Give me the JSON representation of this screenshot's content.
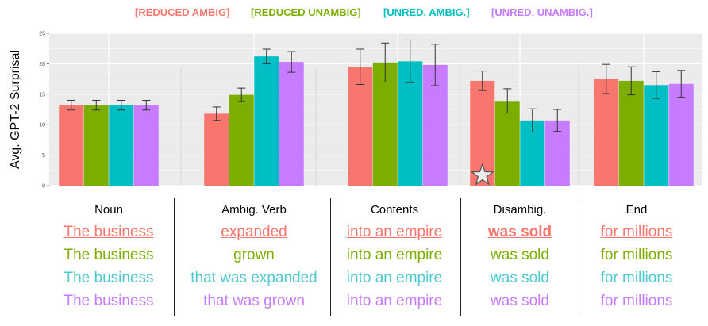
{
  "chart_data": {
    "type": "bar",
    "ylabel": "Avg. GPT-2 Surprisal",
    "ylim": [
      0,
      25
    ],
    "yticks": [
      0,
      5,
      10,
      15,
      20,
      25
    ],
    "grid": true,
    "legend_position": "top",
    "categories": [
      "Noun",
      "Ambig. Verb",
      "Contents",
      "Disambig.",
      "End"
    ],
    "series": [
      {
        "name": "[REDUCED AMBIG]",
        "color": "#f8766d",
        "values": [
          13.2,
          11.8,
          19.5,
          17.2,
          17.5
        ],
        "errors": [
          0.8,
          1.1,
          2.9,
          1.6,
          2.4
        ]
      },
      {
        "name": "[REDUCED UNAMBIG]",
        "color": "#7cae00",
        "values": [
          13.2,
          14.9,
          20.2,
          13.9,
          17.2
        ],
        "errors": [
          0.8,
          1.1,
          3.2,
          2.0,
          2.3
        ]
      },
      {
        "name": "[UNRED. AMBIG.]",
        "color": "#00bfc4",
        "values": [
          13.2,
          21.2,
          20.4,
          10.7,
          16.5
        ],
        "errors": [
          0.8,
          1.2,
          3.5,
          1.9,
          2.2
        ]
      },
      {
        "name": "[UNRED. UNAMBIG.]",
        "color": "#c77cff",
        "values": [
          13.2,
          20.3,
          19.8,
          10.7,
          16.7
        ],
        "errors": [
          0.8,
          1.7,
          3.4,
          1.8,
          2.2
        ]
      }
    ],
    "annotations": [
      {
        "type": "star",
        "category": "Disambig.",
        "series": "[REDUCED AMBIG]"
      }
    ]
  },
  "examples": {
    "columns": [
      {
        "header": "Noun",
        "rows": [
          "The business",
          "The business",
          "The business",
          "The business"
        ]
      },
      {
        "header": "Ambig. Verb",
        "rows": [
          "expanded",
          "grown",
          "that was expanded",
          "that was grown"
        ]
      },
      {
        "header": "Contents",
        "rows": [
          "into an empire",
          "into an empire",
          "into an empire",
          "into an empire"
        ]
      },
      {
        "header": "Disambig.",
        "rows": [
          "was sold",
          "was sold",
          "was sold",
          "was sold"
        ]
      },
      {
        "header": "End",
        "rows": [
          "for millions",
          "for millions",
          "for millions",
          "for millions"
        ]
      }
    ],
    "row_colors": [
      "#f8766d",
      "#7cae00",
      "#4ec9d0",
      "#c77cff"
    ]
  }
}
